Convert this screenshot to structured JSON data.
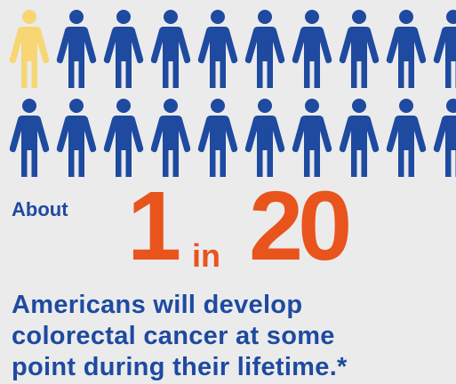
{
  "infographic": {
    "about_label": "About",
    "stat_numerator": "1",
    "stat_connector": "in",
    "stat_denominator": "20",
    "caption_lines": [
      "Americans will develop",
      "colorectal cancer at some",
      "point during their lifetime.*"
    ]
  },
  "figures": {
    "total": 20,
    "highlighted": 1,
    "icon": "person-icon",
    "highlight_color": "#f7d673",
    "base_color": "#1e4aa0"
  },
  "colors": {
    "background": "#ebebec",
    "text_blue": "#1e4aa0",
    "stat_orange": "#e9541d"
  }
}
